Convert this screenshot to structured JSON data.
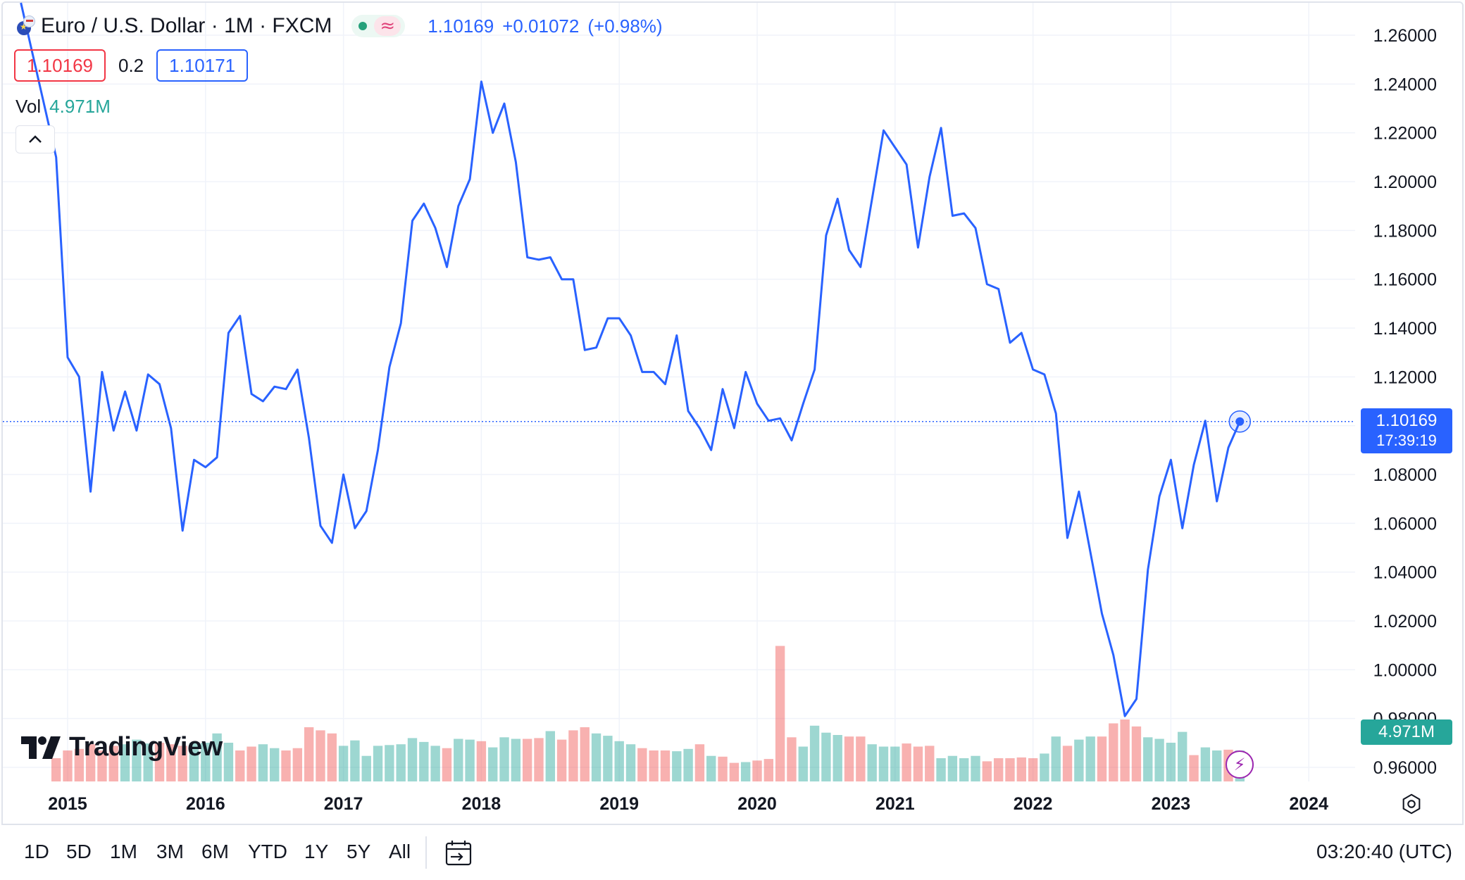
{
  "legend": {
    "symbol": "Euro / U.S. Dollar · 1M · FXCM",
    "last": "1.10169",
    "change_abs": "+0.01072",
    "change_pct": "(+0.98%)",
    "bid": "1.10169",
    "spread": "0.2",
    "ask": "1.10171",
    "vol_label": "Vol",
    "vol_value": "4.971M",
    "wave_icon": "≈"
  },
  "price_scale": {
    "last_label": "1.10169",
    "countdown": "17:39:19",
    "vol_label": "4.971M"
  },
  "logo": {
    "text": "TradingView"
  },
  "toolbar": {
    "ranges": [
      "1D",
      "5D",
      "1M",
      "3M",
      "6M",
      "YTD",
      "1Y",
      "5Y",
      "All"
    ],
    "clock": "03:20:40 (UTC)"
  },
  "colors": {
    "line": "#2962ff",
    "up_volume": "#26a69a",
    "down_volume": "#ef5350",
    "grid": "#f0f3fa"
  },
  "chart_data": {
    "type": "line",
    "title": "Euro / U.S. Dollar · 1M · FXCM",
    "y_ticks": [
      "1.26000",
      "1.24000",
      "1.22000",
      "1.20000",
      "1.18000",
      "1.16000",
      "1.14000",
      "1.12000",
      "1.10000",
      "1.08000",
      "1.06000",
      "1.04000",
      "1.02000",
      "1.00000",
      "0.98000",
      "0.96000"
    ],
    "x_ticks": [
      "2015",
      "2016",
      "2017",
      "2018",
      "2019",
      "2020",
      "2021",
      "2022",
      "2023",
      "2024"
    ],
    "ylim": [
      0.95,
      1.265
    ],
    "grid": true,
    "series": [
      {
        "start": "2014-12",
        "interval": "1M",
        "values": [
          1.21,
          1.128,
          1.12,
          1.073,
          1.122,
          1.098,
          1.114,
          1.098,
          1.121,
          1.117,
          1.099,
          1.057,
          1.086,
          1.083,
          1.087,
          1.138,
          1.145,
          1.113,
          1.11,
          1.116,
          1.115,
          1.123,
          1.095,
          1.059,
          1.052,
          1.08,
          1.058,
          1.065,
          1.09,
          1.124,
          1.142,
          1.184,
          1.191,
          1.181,
          1.165,
          1.19,
          1.201,
          1.241,
          1.22,
          1.232,
          1.208,
          1.169,
          1.168,
          1.169,
          1.16,
          1.16,
          1.131,
          1.132,
          1.144,
          1.144,
          1.137,
          1.122,
          1.122,
          1.117,
          1.137,
          1.106,
          1.099,
          1.09,
          1.115,
          1.099,
          1.122,
          1.109,
          1.102,
          1.103,
          1.094,
          1.109,
          1.123,
          1.178,
          1.193,
          1.172,
          1.165,
          1.193,
          1.221,
          1.214,
          1.207,
          1.173,
          1.202,
          1.222,
          1.186,
          1.187,
          1.181,
          1.158,
          1.156,
          1.134,
          1.138,
          1.123,
          1.121,
          1.105,
          1.054,
          1.073,
          1.048,
          1.023,
          1.006,
          0.981,
          0.988,
          1.041,
          1.071,
          1.086,
          1.058,
          1.084,
          1.102,
          1.069,
          1.091,
          1.1017
        ]
      }
    ],
    "volume": {
      "name": "Vol",
      "values": [
        0.3,
        0.4,
        0.42,
        0.48,
        0.4,
        0.46,
        0.48,
        0.54,
        0.49,
        0.5,
        0.48,
        0.46,
        0.5,
        0.5,
        0.62,
        0.5,
        0.4,
        0.45,
        0.48,
        0.43,
        0.4,
        0.43,
        0.7,
        0.66,
        0.62,
        0.46,
        0.53,
        0.33,
        0.46,
        0.47,
        0.48,
        0.56,
        0.51,
        0.46,
        0.43,
        0.55,
        0.54,
        0.52,
        0.44,
        0.57,
        0.55,
        0.55,
        0.56,
        0.65,
        0.54,
        0.66,
        0.7,
        0.62,
        0.59,
        0.52,
        0.48,
        0.43,
        0.4,
        0.4,
        0.39,
        0.42,
        0.48,
        0.33,
        0.32,
        0.24,
        0.25,
        0.27,
        0.29,
        1.75,
        0.57,
        0.45,
        0.72,
        0.63,
        0.6,
        0.58,
        0.58,
        0.48,
        0.45,
        0.45,
        0.49,
        0.45,
        0.46,
        0.3,
        0.33,
        0.3,
        0.33,
        0.26,
        0.3,
        0.3,
        0.31,
        0.3,
        0.36,
        0.58,
        0.46,
        0.54,
        0.58,
        0.58,
        0.75,
        0.8,
        0.71,
        0.57,
        0.55,
        0.5,
        0.64,
        0.34,
        0.44,
        0.4,
        0.41,
        0.4
      ],
      "colors": [
        "d",
        "d",
        "d",
        "d",
        "d",
        "d",
        "u",
        "u",
        "u",
        "d",
        "d",
        "d",
        "u",
        "u",
        "u",
        "u",
        "d",
        "d",
        "u",
        "u",
        "d",
        "d",
        "d",
        "d",
        "d",
        "u",
        "u",
        "u",
        "u",
        "u",
        "u",
        "u",
        "u",
        "u",
        "d",
        "u",
        "u",
        "d",
        "u",
        "u",
        "u",
        "d",
        "d",
        "u",
        "d",
        "d",
        "d",
        "u",
        "u",
        "u",
        "u",
        "d",
        "d",
        "d",
        "u",
        "u",
        "d",
        "u",
        "d",
        "d",
        "u",
        "d",
        "d",
        "d",
        "d",
        "u",
        "u",
        "u",
        "u",
        "d",
        "d",
        "u",
        "u",
        "u",
        "d",
        "d",
        "d",
        "u",
        "u",
        "u",
        "u",
        "d",
        "d",
        "d",
        "d",
        "d",
        "u",
        "u",
        "d",
        "u",
        "u",
        "d",
        "d",
        "d",
        "d",
        "u",
        "u",
        "u",
        "u",
        "d",
        "u",
        "u",
        "d",
        "u"
      ]
    }
  }
}
